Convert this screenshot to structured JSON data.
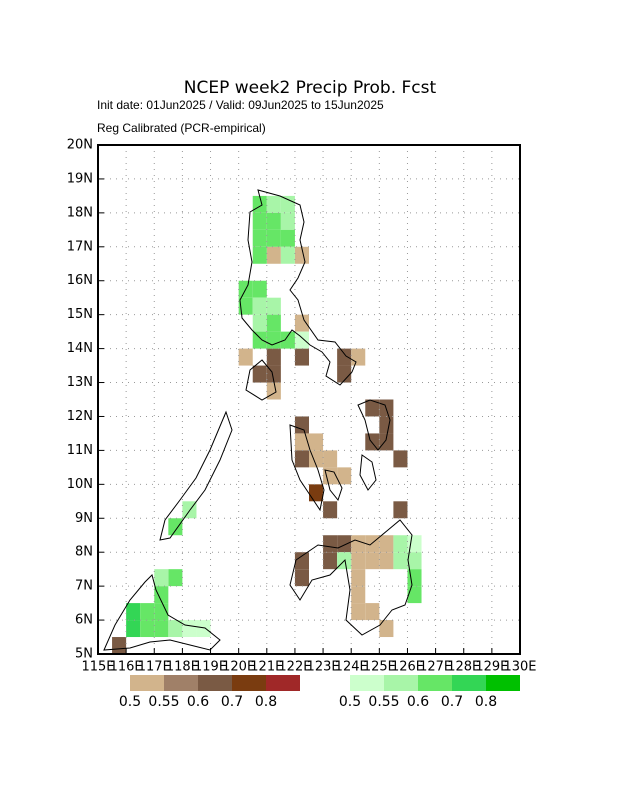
{
  "title": "NCEP week2 Precip Prob. Fcst",
  "subtitle": "Init date: 01Jun2025 / Valid: 09Jun2025 to 15Jun2025",
  "method": "Reg Calibrated (PCR-empirical)",
  "map": {
    "xlim": [
      115,
      130
    ],
    "ylim": [
      5,
      20
    ],
    "cell_size": 0.5,
    "grid": true,
    "xticks": [
      {
        "value": 115,
        "label": "115E"
      },
      {
        "value": 116,
        "label": "116E"
      },
      {
        "value": 117,
        "label": "117E"
      },
      {
        "value": 118,
        "label": "118E"
      },
      {
        "value": 119,
        "label": "119E"
      },
      {
        "value": 120,
        "label": "120E"
      },
      {
        "value": 121,
        "label": "121E"
      },
      {
        "value": 122,
        "label": "122E"
      },
      {
        "value": 123,
        "label": "123E"
      },
      {
        "value": 124,
        "label": "124E"
      },
      {
        "value": 125,
        "label": "125E"
      },
      {
        "value": 126,
        "label": "126E"
      },
      {
        "value": 127,
        "label": "127E"
      },
      {
        "value": 128,
        "label": "128E"
      },
      {
        "value": 129,
        "label": "129E"
      },
      {
        "value": 130,
        "label": "130E"
      }
    ],
    "yticks": [
      {
        "value": 5,
        "label": "5N"
      },
      {
        "value": 6,
        "label": "6N"
      },
      {
        "value": 7,
        "label": "7N"
      },
      {
        "value": 8,
        "label": "8N"
      },
      {
        "value": 9,
        "label": "9N"
      },
      {
        "value": 10,
        "label": "10N"
      },
      {
        "value": 11,
        "label": "11N"
      },
      {
        "value": 12,
        "label": "12N"
      },
      {
        "value": 13,
        "label": "13N"
      },
      {
        "value": 14,
        "label": "14N"
      },
      {
        "value": 15,
        "label": "15N"
      },
      {
        "value": 16,
        "label": "16N"
      },
      {
        "value": 17,
        "label": "17N"
      },
      {
        "value": 18,
        "label": "18N"
      },
      {
        "value": 19,
        "label": "19N"
      },
      {
        "value": 20,
        "label": "20N"
      }
    ],
    "below": {
      "colors": [
        "#d2b48c",
        "#a08068",
        "#7a5a44",
        "#7a3c10",
        "#a02828"
      ],
      "levels": [
        0.5,
        0.55,
        0.6,
        0.7,
        0.8
      ],
      "cells": [
        [
          121,
          16.5,
          0.5
        ],
        [
          122,
          16.5,
          0.5
        ],
        [
          122,
          14.5,
          0.5
        ],
        [
          120,
          13.5,
          0.5
        ],
        [
          120.5,
          13,
          0.6
        ],
        [
          121,
          13.5,
          0.6
        ],
        [
          121,
          13,
          0.6
        ],
        [
          121,
          12.5,
          0.5
        ],
        [
          122,
          13.5,
          0.6
        ],
        [
          123.5,
          13.5,
          0.6
        ],
        [
          124,
          13.5,
          0.5
        ],
        [
          123.5,
          13,
          0.6
        ],
        [
          124.5,
          12,
          0.6
        ],
        [
          125,
          12,
          0.6
        ],
        [
          125,
          11.5,
          0.6
        ],
        [
          124.5,
          11,
          0.6
        ],
        [
          125,
          11,
          0.6
        ],
        [
          125.5,
          10.5,
          0.6
        ],
        [
          122,
          11.5,
          0.6
        ],
        [
          122,
          11,
          0.5
        ],
        [
          122.5,
          11,
          0.5
        ],
        [
          122,
          10.5,
          0.6
        ],
        [
          122.5,
          10.5,
          0.5
        ],
        [
          123,
          10.5,
          0.5
        ],
        [
          123,
          10,
          0.5
        ],
        [
          122.5,
          9.5,
          0.7
        ],
        [
          123,
          9,
          0.6
        ],
        [
          123.5,
          10,
          0.5
        ],
        [
          123,
          8,
          0.6
        ],
        [
          123.5,
          8,
          0.6
        ],
        [
          124,
          8,
          0.5
        ],
        [
          124.5,
          8,
          0.5
        ],
        [
          125,
          8,
          0.5
        ],
        [
          123,
          7.5,
          0.6
        ],
        [
          124,
          7.5,
          0.5
        ],
        [
          124.5,
          7.5,
          0.5
        ],
        [
          125,
          7.5,
          0.5
        ],
        [
          122,
          7.5,
          0.6
        ],
        [
          122,
          7,
          0.6
        ],
        [
          124,
          7,
          0.5
        ],
        [
          124,
          6.5,
          0.5
        ],
        [
          124,
          6,
          0.5
        ],
        [
          124.5,
          6,
          0.5
        ],
        [
          125,
          5.5,
          0.5
        ],
        [
          125.5,
          9,
          0.6
        ],
        [
          115.5,
          5,
          0.6
        ]
      ]
    },
    "above": {
      "colors": [
        "#ccffcc",
        "#a8f5a8",
        "#66e666",
        "#33d655",
        "#00c000"
      ],
      "levels": [
        0.5,
        0.55,
        0.6,
        0.7,
        0.8
      ],
      "cells": [
        [
          120.5,
          18,
          0.6
        ],
        [
          121,
          18,
          0.55
        ],
        [
          121.5,
          18,
          0.55
        ],
        [
          120.5,
          17.5,
          0.6
        ],
        [
          121,
          17.5,
          0.6
        ],
        [
          121.5,
          17.5,
          0.55
        ],
        [
          120.5,
          17,
          0.6
        ],
        [
          121,
          17,
          0.6
        ],
        [
          121.5,
          17,
          0.6
        ],
        [
          120.5,
          16.5,
          0.6
        ],
        [
          121.5,
          16.5,
          0.55
        ],
        [
          120,
          15.5,
          0.6
        ],
        [
          120.5,
          15.5,
          0.6
        ],
        [
          120,
          15,
          0.6
        ],
        [
          120.5,
          15,
          0.55
        ],
        [
          121,
          15,
          0.55
        ],
        [
          120.5,
          14.5,
          0.55
        ],
        [
          121,
          14.5,
          0.6
        ],
        [
          120.5,
          14,
          0.6
        ],
        [
          121,
          14,
          0.6
        ],
        [
          121.5,
          14,
          0.6
        ],
        [
          122,
          14,
          0.5
        ],
        [
          116,
          6,
          0.7
        ],
        [
          116,
          5.5,
          0.7
        ],
        [
          116.5,
          6,
          0.6
        ],
        [
          116.5,
          5.5,
          0.6
        ],
        [
          117,
          6.5,
          0.6
        ],
        [
          117,
          6,
          0.6
        ],
        [
          117,
          5.5,
          0.6
        ],
        [
          117.5,
          7,
          0.6
        ],
        [
          117,
          7,
          0.55
        ],
        [
          117.5,
          5.5,
          0.55
        ],
        [
          118,
          5.5,
          0.5
        ],
        [
          118.5,
          5.5,
          0.5
        ],
        [
          117.5,
          8.5,
          0.6
        ],
        [
          118,
          9,
          0.55
        ],
        [
          125.5,
          8,
          0.55
        ],
        [
          126,
          8,
          0.5
        ],
        [
          125.5,
          7.5,
          0.55
        ],
        [
          126,
          7.5,
          0.55
        ],
        [
          126,
          7,
          0.6
        ],
        [
          126,
          6.5,
          0.6
        ],
        [
          123.5,
          7.5,
          0.55
        ]
      ]
    }
  }
}
